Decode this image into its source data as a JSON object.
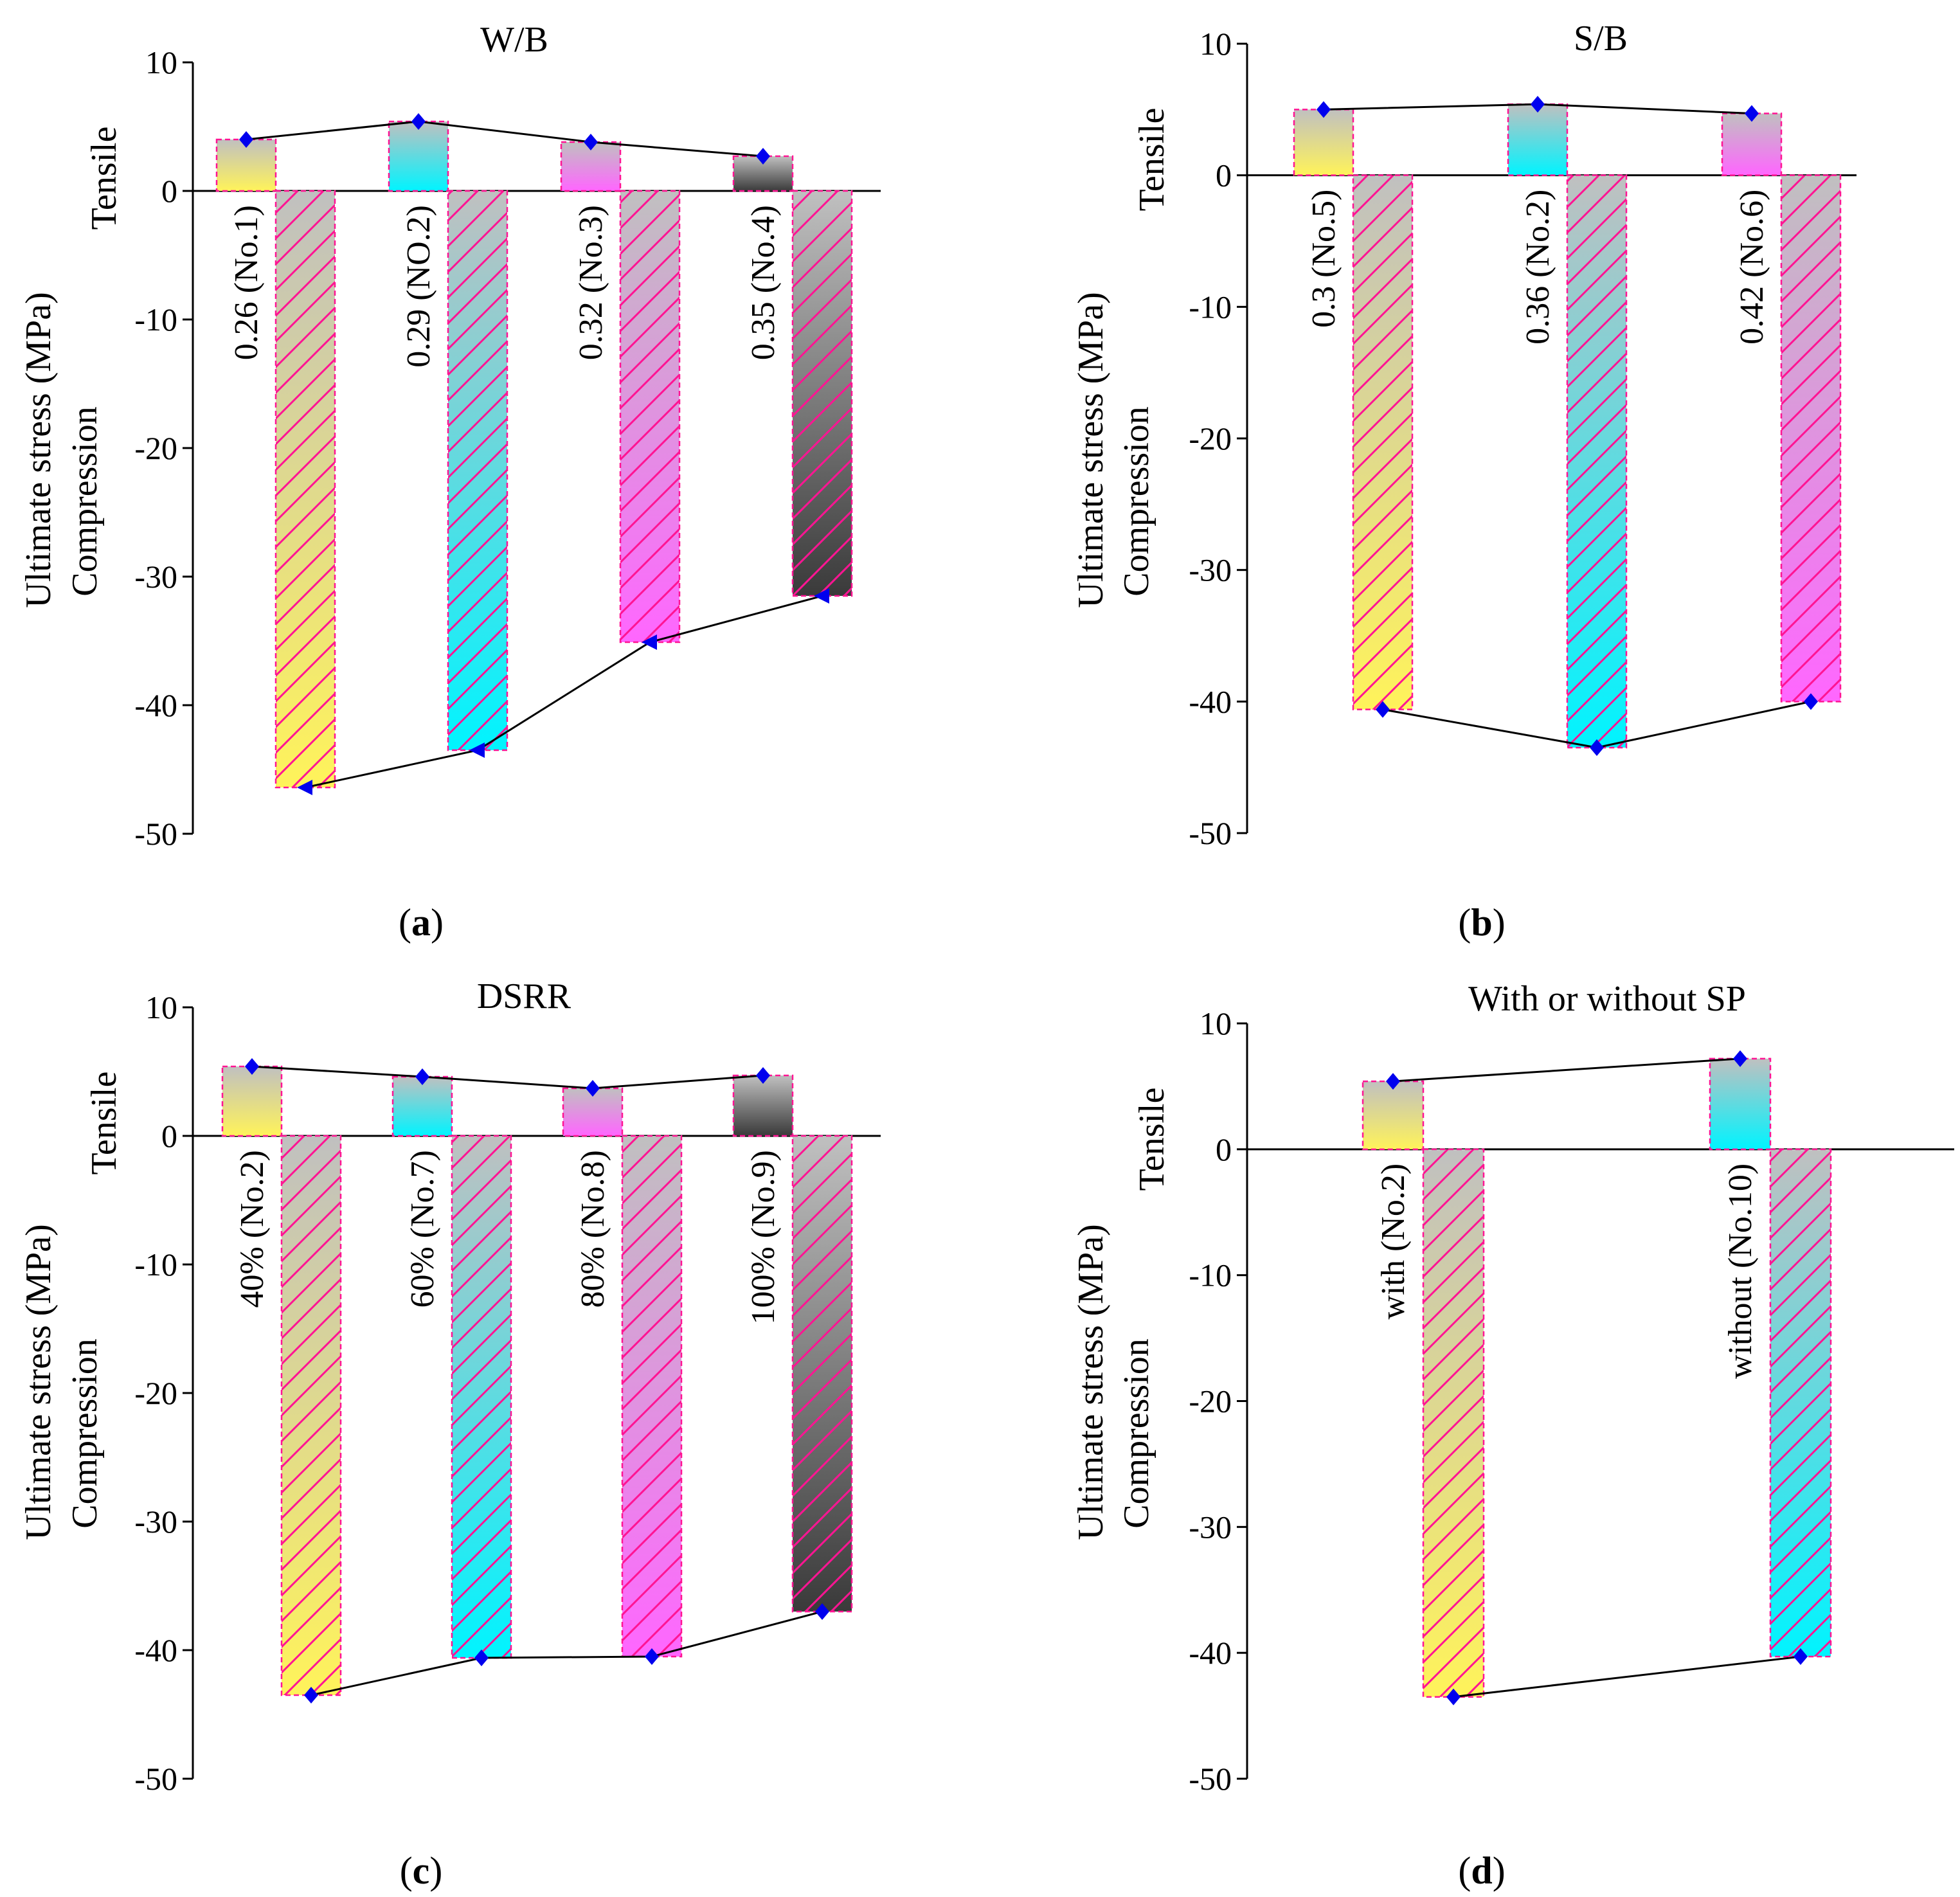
{
  "ylabel_main": "Ultimate stress (MPa)",
  "ylabel_compression": "Compression",
  "ylabel_tensile": "Tensile",
  "colors": {
    "yellow": "#fff35a",
    "cyan": "#00f4ff",
    "magenta": "#ff66ff",
    "gray": "#3a3a3a",
    "fade": "#c0c0c0",
    "hatch": "#ff1493",
    "marker": "#0000ee",
    "line": "#000000"
  },
  "chart_data": [
    {
      "type": "bar",
      "panel": "(a)",
      "panel_letter": "a",
      "title": "W/B",
      "categories": [
        "0.26 (No.1)",
        "0.29 (NO.2)",
        "0.32 (No.3)",
        "0.35 (No.4)"
      ],
      "series": [
        {
          "name": "Tensile",
          "values": [
            4.0,
            5.4,
            3.8,
            2.7
          ]
        },
        {
          "name": "Compression",
          "values": [
            -46.4,
            -43.5,
            -35.1,
            -31.5
          ]
        }
      ],
      "marker": "triangle-left",
      "bar_colors": [
        "yellow",
        "cyan",
        "magenta",
        "gray"
      ],
      "ylim": [
        -50,
        10
      ],
      "yticks": [
        "10",
        "0",
        "-10",
        "-20",
        "-30",
        "-40",
        "-50"
      ]
    },
    {
      "type": "bar",
      "panel": "(b)",
      "panel_letter": "b",
      "title": "S/B",
      "categories": [
        "0.3 (No.5)",
        "0.36 (No.2)",
        "0.42 (No.6)"
      ],
      "series": [
        {
          "name": "Tensile",
          "values": [
            5.0,
            5.4,
            4.7
          ]
        },
        {
          "name": "Compression",
          "values": [
            -40.6,
            -43.5,
            -40.0
          ]
        }
      ],
      "marker": "diamond",
      "bar_colors": [
        "yellow",
        "cyan",
        "magenta"
      ],
      "ylim": [
        -50,
        10
      ],
      "yticks": [
        "10",
        "0",
        "-10",
        "-20",
        "-30",
        "-40",
        "-50"
      ]
    },
    {
      "type": "bar",
      "panel": "(c)",
      "panel_letter": "c",
      "title": "DSRR",
      "categories": [
        "40% (No.2)",
        "60% (No.7)",
        "80% (No.8)",
        "100% (No.9)"
      ],
      "series": [
        {
          "name": "Tensile",
          "values": [
            5.4,
            4.6,
            3.7,
            4.7
          ]
        },
        {
          "name": "Compression",
          "values": [
            -43.5,
            -40.6,
            -40.5,
            -37.0
          ]
        }
      ],
      "marker": "diamond",
      "bar_colors": [
        "yellow",
        "cyan",
        "magenta",
        "gray"
      ],
      "ylim": [
        -50,
        10
      ],
      "yticks": [
        "10",
        "0",
        "-10",
        "-20",
        "-30",
        "-40",
        "-50"
      ]
    },
    {
      "type": "bar",
      "panel": "(d)",
      "panel_letter": "d",
      "title": "With or without SP",
      "categories": [
        "with (No.2)",
        "without (No.10)"
      ],
      "series": [
        {
          "name": "Tensile",
          "values": [
            5.4,
            7.2
          ]
        },
        {
          "name": "Compression",
          "values": [
            -43.5,
            -40.3
          ]
        }
      ],
      "marker": "diamond",
      "bar_colors": [
        "yellow",
        "cyan"
      ],
      "ylim": [
        -50,
        10
      ],
      "yticks": [
        "10",
        "0",
        "-10",
        "-20",
        "-30",
        "-40",
        "-50"
      ]
    }
  ]
}
